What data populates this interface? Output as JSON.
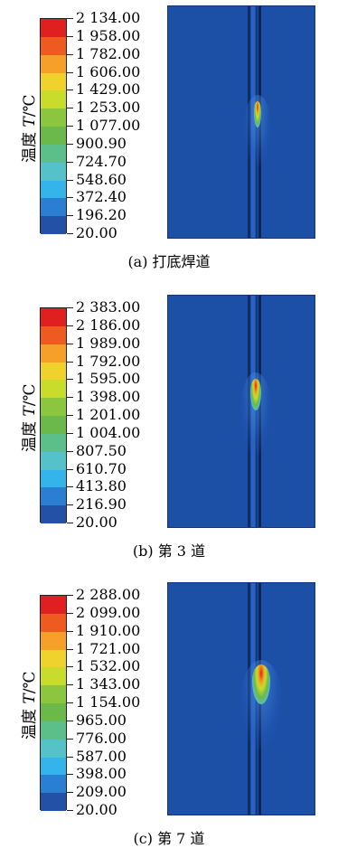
{
  "ylabel_prefix": "温度 ",
  "ylabel_var": "T",
  "ylabel_unit": "/℃",
  "colors": [
    "#e02020",
    "#ef5a21",
    "#f6a02a",
    "#f0d22c",
    "#c9dc2c",
    "#8cc63f",
    "#6ab94a",
    "#5cbf8a",
    "#54c2c8",
    "#34b4ea",
    "#2a7fd3",
    "#2351a6"
  ],
  "panels": [
    {
      "caption": "(a) 打底焊道",
      "legend": [
        "2 134.00",
        "1 958.00",
        "1 782.00",
        "1 606.00",
        "1 429.00",
        "1 253.00",
        "1 077.00",
        "900.90",
        "724.70",
        "548.60",
        "372.40",
        "196.20",
        "20.00"
      ]
    },
    {
      "caption": "(b) 第 3 道",
      "legend": [
        "2 383.00",
        "2 186.00",
        "1 989.00",
        "1 792.00",
        "1 595.00",
        "1 398.00",
        "1 201.00",
        "1 004.00",
        "807.50",
        "610.70",
        "413.80",
        "216.90",
        "20.00"
      ]
    },
    {
      "caption": "(c) 第 7 道",
      "legend": [
        "2 288.00",
        "2 099.00",
        "1 910.00",
        "1 721.00",
        "1 532.00",
        "1 343.00",
        "1 154.00",
        "965.00",
        "776.00",
        "587.00",
        "398.00",
        "209.00",
        "20.00"
      ]
    }
  ]
}
